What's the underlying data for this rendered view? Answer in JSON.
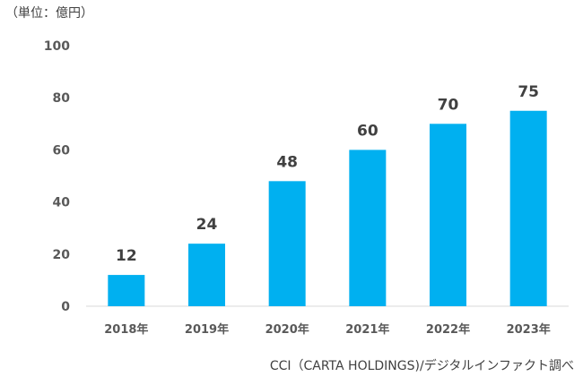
{
  "unit_label": "（単位：億円）",
  "source": "CCI（CARTA HOLDINGS)/デジタルインファクト調べ",
  "chart_data": {
    "type": "bar",
    "title": "",
    "xlabel": "",
    "ylabel": "",
    "categories": [
      "2018年",
      "2019年",
      "2020年",
      "2021年",
      "2022年",
      "2023年"
    ],
    "values": [
      12,
      24,
      48,
      60,
      70,
      75
    ],
    "data_labels": [
      "12",
      "24",
      "48",
      "60",
      "70",
      "75"
    ],
    "ylim": [
      0,
      100
    ],
    "yticks": [
      "0",
      "20",
      "40",
      "60",
      "80",
      "100"
    ],
    "grid": false,
    "legend": "none",
    "bar_color": "#00b0f0"
  }
}
